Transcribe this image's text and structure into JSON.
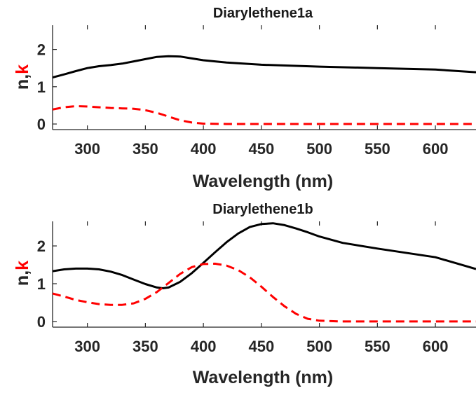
{
  "colors": {
    "n": "#000000",
    "k": "#ff0000",
    "axis": "#262626"
  },
  "chart_data": [
    {
      "type": "line",
      "title": "Diarylethene1a",
      "xlabel": "Wavelength (nm)",
      "ylabel_parts": [
        "n",
        ",",
        "k"
      ],
      "xlim": [
        270,
        635
      ],
      "ylim": [
        -0.15,
        2.65
      ],
      "xticks": [
        300,
        350,
        400,
        450,
        500,
        550,
        600
      ],
      "yticks": [
        0,
        1,
        2
      ],
      "grid": false,
      "series": [
        {
          "style": "solid",
          "color": "#000000",
          "x": [
            270,
            280,
            290,
            300,
            310,
            320,
            330,
            340,
            350,
            360,
            370,
            380,
            390,
            400,
            420,
            450,
            500,
            550,
            600,
            635
          ],
          "y": [
            1.25,
            1.33,
            1.42,
            1.5,
            1.55,
            1.58,
            1.62,
            1.68,
            1.74,
            1.8,
            1.82,
            1.81,
            1.76,
            1.71,
            1.65,
            1.59,
            1.54,
            1.5,
            1.46,
            1.39
          ]
        },
        {
          "style": "dashed",
          "color": "#ff0000",
          "x": [
            270,
            280,
            290,
            300,
            310,
            320,
            330,
            340,
            350,
            360,
            370,
            380,
            390,
            400,
            420,
            450,
            500,
            550,
            600,
            635
          ],
          "y": [
            0.39,
            0.45,
            0.48,
            0.47,
            0.45,
            0.43,
            0.42,
            0.41,
            0.37,
            0.3,
            0.2,
            0.1,
            0.04,
            0.01,
            0.0,
            0.0,
            0.0,
            0.0,
            0.0,
            0.0
          ]
        }
      ]
    },
    {
      "type": "line",
      "title": "Diarylethene1b",
      "xlabel": "Wavelength (nm)",
      "ylabel_parts": [
        "n",
        ",",
        "k"
      ],
      "xlim": [
        270,
        635
      ],
      "ylim": [
        -0.15,
        2.65
      ],
      "xticks": [
        300,
        350,
        400,
        450,
        500,
        550,
        600
      ],
      "yticks": [
        0,
        1,
        2
      ],
      "grid": false,
      "series": [
        {
          "style": "solid",
          "color": "#000000",
          "x": [
            270,
            280,
            290,
            300,
            310,
            320,
            330,
            340,
            350,
            360,
            365,
            370,
            380,
            390,
            400,
            410,
            420,
            430,
            440,
            450,
            460,
            470,
            480,
            490,
            500,
            520,
            550,
            600,
            635
          ],
          "y": [
            1.33,
            1.38,
            1.4,
            1.4,
            1.38,
            1.32,
            1.23,
            1.11,
            0.99,
            0.9,
            0.88,
            0.9,
            1.05,
            1.28,
            1.55,
            1.83,
            2.1,
            2.33,
            2.5,
            2.58,
            2.6,
            2.55,
            2.46,
            2.36,
            2.25,
            2.08,
            1.93,
            1.7,
            1.39
          ]
        },
        {
          "style": "dashed",
          "color": "#ff0000",
          "x": [
            270,
            280,
            290,
            300,
            310,
            320,
            330,
            340,
            350,
            360,
            370,
            380,
            390,
            400,
            410,
            420,
            430,
            440,
            450,
            460,
            470,
            480,
            490,
            500,
            510,
            520,
            550,
            600,
            635
          ],
          "y": [
            0.74,
            0.66,
            0.57,
            0.51,
            0.46,
            0.44,
            0.44,
            0.48,
            0.6,
            0.78,
            1.02,
            1.26,
            1.44,
            1.52,
            1.53,
            1.48,
            1.36,
            1.17,
            0.92,
            0.65,
            0.4,
            0.2,
            0.07,
            0.02,
            0.01,
            0.0,
            0.0,
            0.0,
            0.0
          ]
        }
      ]
    }
  ]
}
